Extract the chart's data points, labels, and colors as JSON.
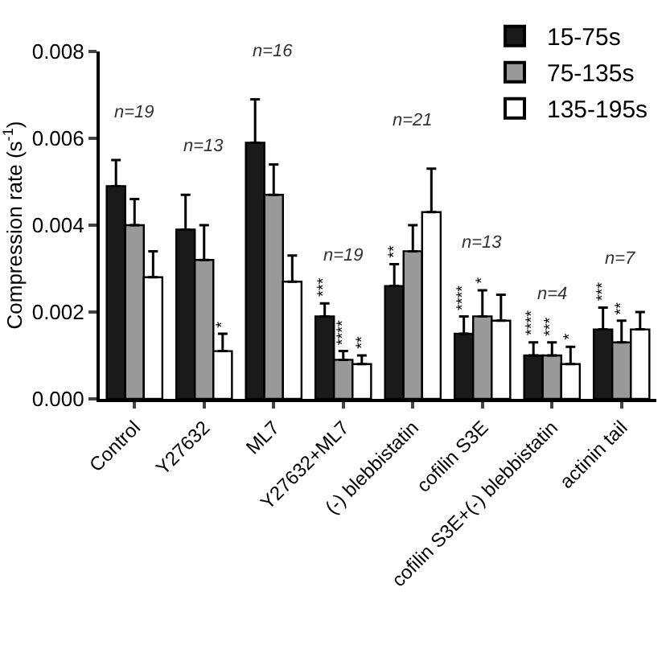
{
  "chart_data": {
    "type": "bar",
    "ylabel": "Compression rate (s$^{-1}$)",
    "categories": [
      "Control",
      "Y27632",
      "ML7",
      "Y27632+ML7",
      "(-) blebbistatin",
      "cofilin S3E",
      "cofilin S3E+(-) blebbistatin",
      "actinin tail"
    ],
    "series": [
      {
        "name": "15-75s",
        "color": "#1a1a1a",
        "values": [
          0.0049,
          0.0039,
          0.0059,
          0.0019,
          0.0026,
          0.0015,
          0.001,
          0.0016
        ],
        "errors": [
          0.0006,
          0.0008,
          0.001,
          0.0003,
          0.0005,
          0.0004,
          0.0003,
          0.0005
        ],
        "value_labels": [
          null,
          null,
          null,
          "***",
          "**",
          "****",
          "****",
          "***"
        ]
      },
      {
        "name": "75-135s",
        "color": "#999999",
        "values": [
          0.004,
          0.0032,
          0.0047,
          0.0009,
          0.0034,
          0.0019,
          0.001,
          0.0013
        ],
        "errors": [
          0.0006,
          0.0008,
          0.0007,
          0.0002,
          0.0006,
          0.0006,
          0.0003,
          0.0005
        ],
        "value_labels": [
          null,
          null,
          null,
          "****",
          null,
          "*",
          "***",
          "**"
        ]
      },
      {
        "name": "135-195s",
        "color": "#ffffff",
        "values": [
          0.0028,
          0.0011,
          0.0027,
          0.0008,
          0.0043,
          0.0018,
          0.0008,
          0.0016
        ],
        "errors": [
          0.0006,
          0.0004,
          0.0006,
          0.0002,
          0.001,
          0.0006,
          0.0004,
          0.0004
        ],
        "value_labels": [
          null,
          "*",
          null,
          "**",
          null,
          null,
          "*",
          null
        ]
      }
    ],
    "ylim": [
      0,
      0.008
    ],
    "yticks": [
      {
        "value": 0,
        "label": "0.000"
      },
      {
        "value": 0.002,
        "label": "0.002"
      },
      {
        "value": 0.004,
        "label": "0.004"
      },
      {
        "value": 0.006,
        "label": "0.006"
      },
      {
        "value": 0.008,
        "label": "0.008"
      }
    ],
    "annotations": [
      "n=19",
      "n=13",
      "n=16",
      "n=19",
      "n=21",
      "n=13",
      "n=4",
      "n=7"
    ],
    "legend": "top right"
  }
}
